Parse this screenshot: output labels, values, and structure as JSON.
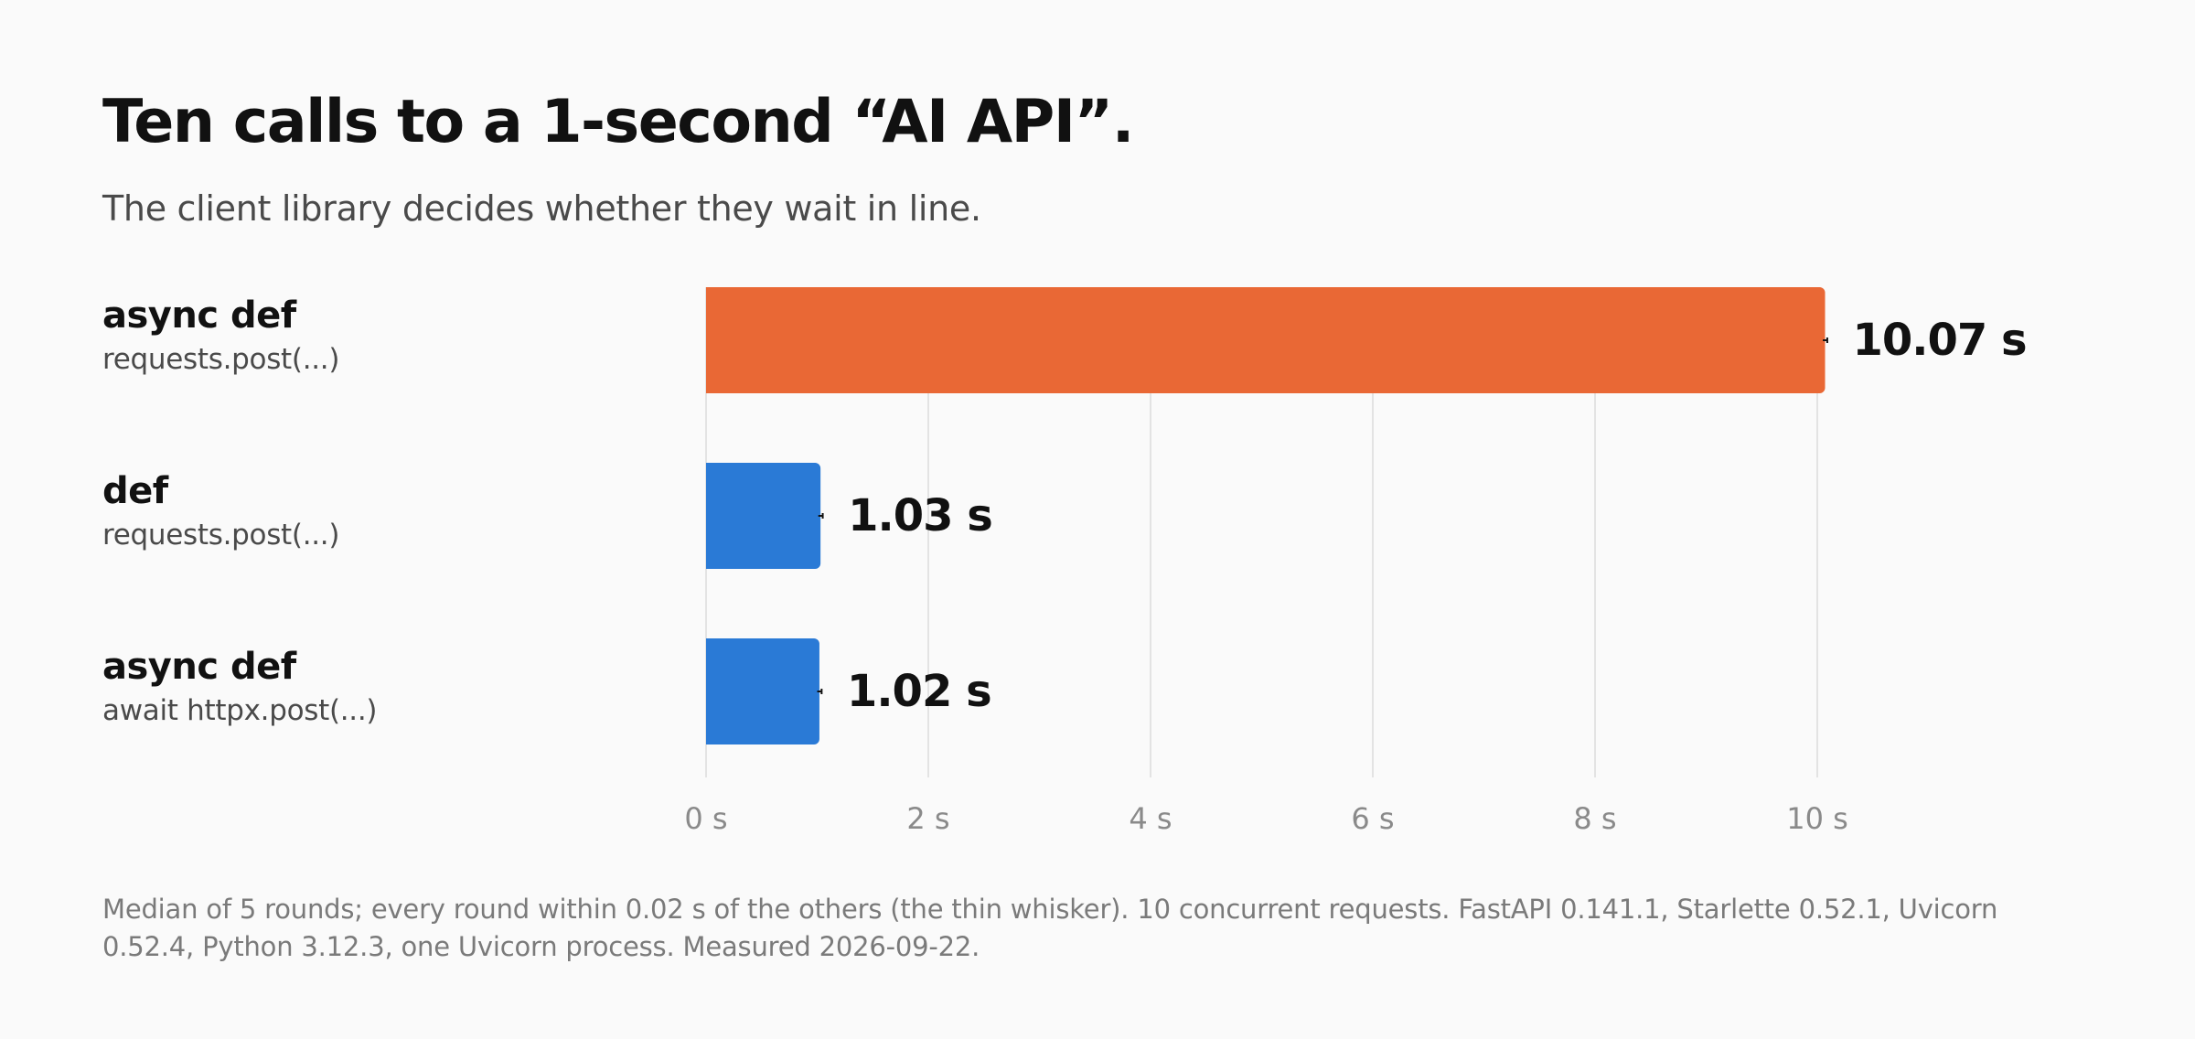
{
  "header": {
    "title": "Ten calls to a 1-second “AI API”.",
    "subtitle": "The client library decides whether they wait in line."
  },
  "rows": [
    {
      "line1": "async def",
      "line2": "requests.post(...)"
    },
    {
      "line1": "def",
      "line2": "requests.post(...)"
    },
    {
      "line1": "async def",
      "line2": "await httpx.post(...)"
    }
  ],
  "footnote": "Median of 5 rounds; every round within 0.02 s of the others (the thin whisker). 10 concurrent requests. FastAPI 0.141.1, Starlette 0.52.1, Uvicorn 0.52.4, Python 3.12.3, one Uvicorn process. Measured 2026-09-22.",
  "colors": {
    "highlight": "#e96835",
    "normal": "#2a7ad6",
    "grid": "#e3e3e3",
    "tick_text": "#8a8a8a",
    "value_text": "#111111"
  },
  "chart_data": {
    "type": "bar",
    "orientation": "horizontal",
    "categories": [
      "async def requests.post(...)",
      "def requests.post(...)",
      "async def await httpx.post(...)"
    ],
    "values": [
      10.07,
      1.03,
      1.02
    ],
    "value_labels": [
      "10.07 s",
      "1.03 s",
      "1.02 s"
    ],
    "whisker_spread": 0.02,
    "highlighted": [
      true,
      false,
      false
    ],
    "xlim": [
      0,
      10
    ],
    "xticks": [
      0,
      2,
      4,
      6,
      8,
      10
    ],
    "xtick_labels": [
      "0 s",
      "2 s",
      "4 s",
      "6 s",
      "8 s",
      "10 s"
    ],
    "grid": true
  }
}
